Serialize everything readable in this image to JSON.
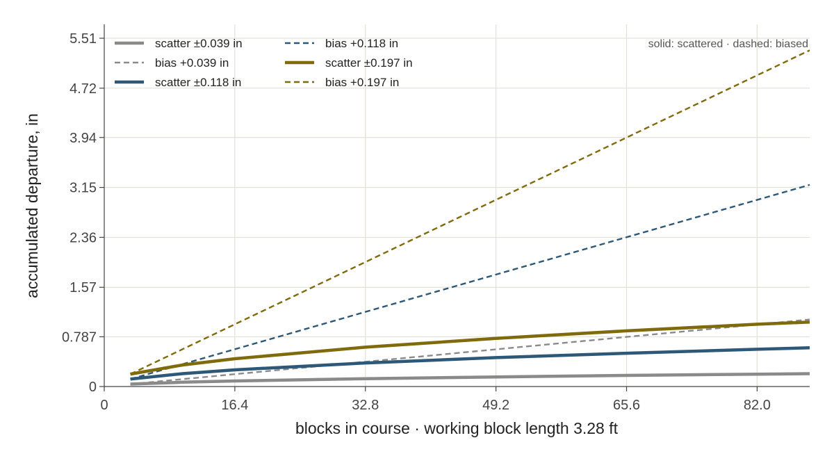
{
  "chart_data": {
    "type": "line",
    "title": "",
    "xlabel": "blocks in course · working block length 3.28 ft",
    "ylabel": "accumulated departure, in",
    "xlim": [
      0,
      88.6
    ],
    "ylim": [
      0,
      5.51
    ],
    "x_ticks": [
      {
        "value": 0,
        "label": "0"
      },
      {
        "value": 16.4,
        "label": "16.4"
      },
      {
        "value": 32.8,
        "label": "32.8"
      },
      {
        "value": 49.2,
        "label": "49.2"
      },
      {
        "value": 65.6,
        "label": "65.6"
      },
      {
        "value": 82.0,
        "label": "82.0"
      }
    ],
    "y_ticks": [
      {
        "value": 0,
        "label": "0"
      },
      {
        "value": 0.787,
        "label": "0.787"
      },
      {
        "value": 1.57,
        "label": "1.57"
      },
      {
        "value": 2.36,
        "label": "2.36"
      },
      {
        "value": 3.15,
        "label": "3.15"
      },
      {
        "value": 3.94,
        "label": "3.94"
      },
      {
        "value": 4.72,
        "label": "4.72"
      },
      {
        "value": 5.51,
        "label": "5.51"
      }
    ],
    "grid": true,
    "legend_position": "top-left",
    "annotation": "solid: scattered · dashed: biased",
    "series": [
      {
        "name": "scatter ±0.039 in",
        "style": "solid",
        "color": "#8a8a8a",
        "points": [
          [
            3.28,
            0.039
          ],
          [
            9.84,
            0.068
          ],
          [
            16.4,
            0.088
          ],
          [
            32.8,
            0.124
          ],
          [
            49.2,
            0.152
          ],
          [
            65.6,
            0.176
          ],
          [
            82.0,
            0.196
          ],
          [
            88.6,
            0.204
          ]
        ]
      },
      {
        "name": "bias +0.039 in",
        "style": "dashed",
        "color": "#8a8a8a",
        "points": [
          [
            3.28,
            0.039
          ],
          [
            88.6,
            1.06
          ]
        ]
      },
      {
        "name": "scatter ±0.118 in",
        "style": "solid",
        "color": "#2e5877",
        "points": [
          [
            3.28,
            0.118
          ],
          [
            9.84,
            0.204
          ],
          [
            16.4,
            0.264
          ],
          [
            32.8,
            0.373
          ],
          [
            49.2,
            0.457
          ],
          [
            65.6,
            0.527
          ],
          [
            82.0,
            0.59
          ],
          [
            88.6,
            0.613
          ]
        ]
      },
      {
        "name": "bias +0.118 in",
        "style": "dashed",
        "color": "#2e5877",
        "points": [
          [
            3.28,
            0.118
          ],
          [
            88.6,
            3.19
          ]
        ]
      },
      {
        "name": "scatter ±0.197 in",
        "style": "solid",
        "color": "#7f6a0c",
        "points": [
          [
            3.28,
            0.197
          ],
          [
            9.84,
            0.341
          ],
          [
            16.4,
            0.44
          ],
          [
            32.8,
            0.623
          ],
          [
            49.2,
            0.762
          ],
          [
            65.6,
            0.881
          ],
          [
            82.0,
            0.985
          ],
          [
            88.6,
            1.02
          ]
        ]
      },
      {
        "name": "bias +0.197 in",
        "style": "dashed",
        "color": "#7f6a0c",
        "points": [
          [
            3.28,
            0.197
          ],
          [
            88.6,
            5.32
          ]
        ]
      }
    ]
  }
}
